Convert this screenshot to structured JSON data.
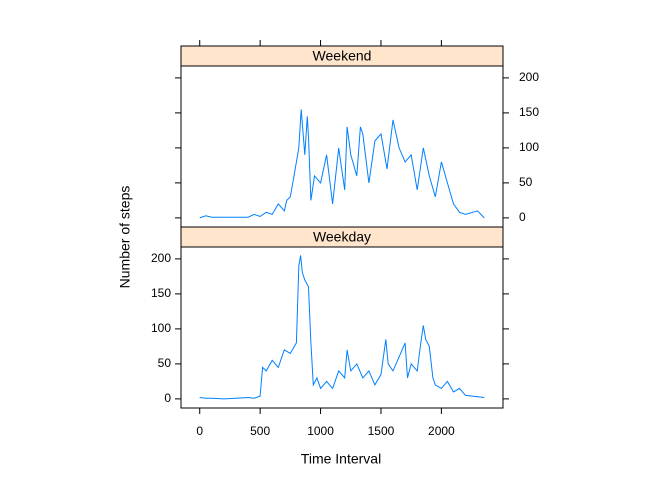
{
  "chart_data": {
    "type": "line",
    "xlabel": "Time Interval",
    "ylabel": "Number of steps",
    "xlim": [
      -155,
      2510
    ],
    "xticks": [
      0,
      500,
      1000,
      1500,
      2000
    ],
    "ylim": [
      -13,
      217
    ],
    "yticks": [
      0,
      50,
      100,
      150,
      200
    ],
    "series": [
      {
        "name": "Weekend",
        "color": "#0080ff",
        "x": [
          0,
          50,
          100,
          200,
          300,
          400,
          450,
          500,
          550,
          600,
          650,
          700,
          720,
          750,
          780,
          820,
          840,
          870,
          890,
          900,
          920,
          950,
          1000,
          1050,
          1100,
          1150,
          1200,
          1220,
          1250,
          1300,
          1330,
          1350,
          1400,
          1450,
          1500,
          1550,
          1600,
          1650,
          1700,
          1750,
          1800,
          1850,
          1900,
          1950,
          2000,
          2050,
          2100,
          2150,
          2200,
          2300,
          2355
        ],
        "values": [
          0,
          3,
          1,
          1,
          1,
          1,
          5,
          2,
          8,
          5,
          20,
          10,
          25,
          30,
          60,
          100,
          155,
          90,
          145,
          115,
          25,
          60,
          50,
          90,
          20,
          100,
          40,
          130,
          90,
          60,
          130,
          120,
          50,
          110,
          120,
          70,
          140,
          100,
          80,
          90,
          40,
          100,
          60,
          30,
          80,
          50,
          20,
          8,
          5,
          10,
          0
        ]
      },
      {
        "name": "Weekday",
        "color": "#0080ff",
        "x": [
          0,
          50,
          100,
          200,
          300,
          400,
          450,
          500,
          520,
          550,
          600,
          650,
          700,
          750,
          800,
          820,
          835,
          850,
          870,
          900,
          920,
          940,
          970,
          1000,
          1050,
          1100,
          1150,
          1200,
          1220,
          1250,
          1300,
          1350,
          1400,
          1450,
          1500,
          1540,
          1560,
          1600,
          1650,
          1700,
          1720,
          1750,
          1800,
          1830,
          1850,
          1870,
          1900,
          1930,
          1950,
          2000,
          2050,
          2100,
          2150,
          2200,
          2300,
          2355
        ],
        "values": [
          2,
          1,
          1,
          0,
          1,
          2,
          1,
          4,
          45,
          40,
          55,
          45,
          70,
          65,
          80,
          190,
          205,
          180,
          170,
          160,
          80,
          20,
          30,
          15,
          25,
          15,
          40,
          30,
          70,
          40,
          50,
          30,
          40,
          20,
          35,
          85,
          50,
          40,
          60,
          80,
          30,
          50,
          40,
          80,
          105,
          85,
          75,
          30,
          20,
          15,
          25,
          10,
          15,
          5,
          3,
          2
        ]
      }
    ]
  }
}
